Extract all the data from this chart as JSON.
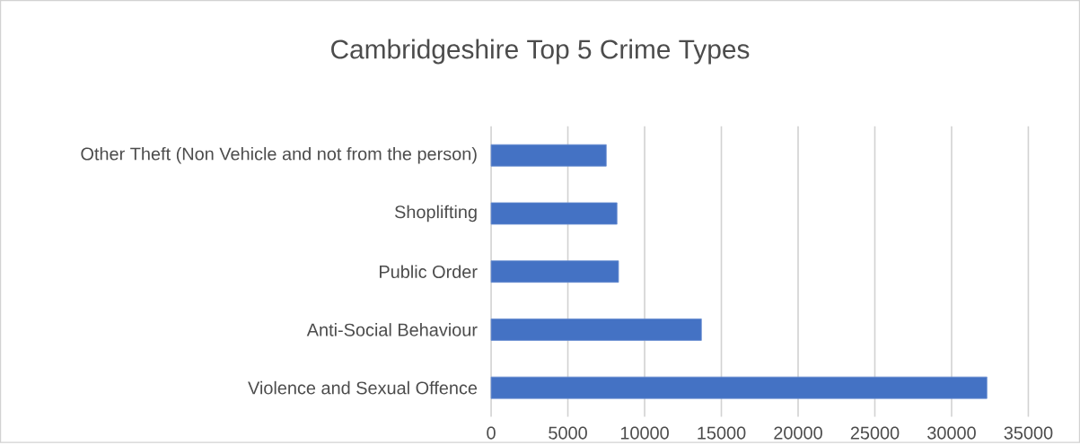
{
  "chart_data": {
    "type": "bar",
    "orientation": "horizontal",
    "title": "Cambridgeshire Top 5 Crime Types",
    "categories": [
      "Other Theft (Non Vehicle and not from the person)",
      "Shoplifting",
      "Public Order",
      "Anti-Social Behaviour",
      "Violence and Sexual Offence"
    ],
    "values": [
      7500,
      8200,
      8300,
      13700,
      32300
    ],
    "color": "#4472c4",
    "xlim": [
      0,
      35000
    ],
    "xticks": [
      0,
      5000,
      10000,
      15000,
      20000,
      25000,
      30000,
      35000
    ],
    "grid": "x"
  }
}
